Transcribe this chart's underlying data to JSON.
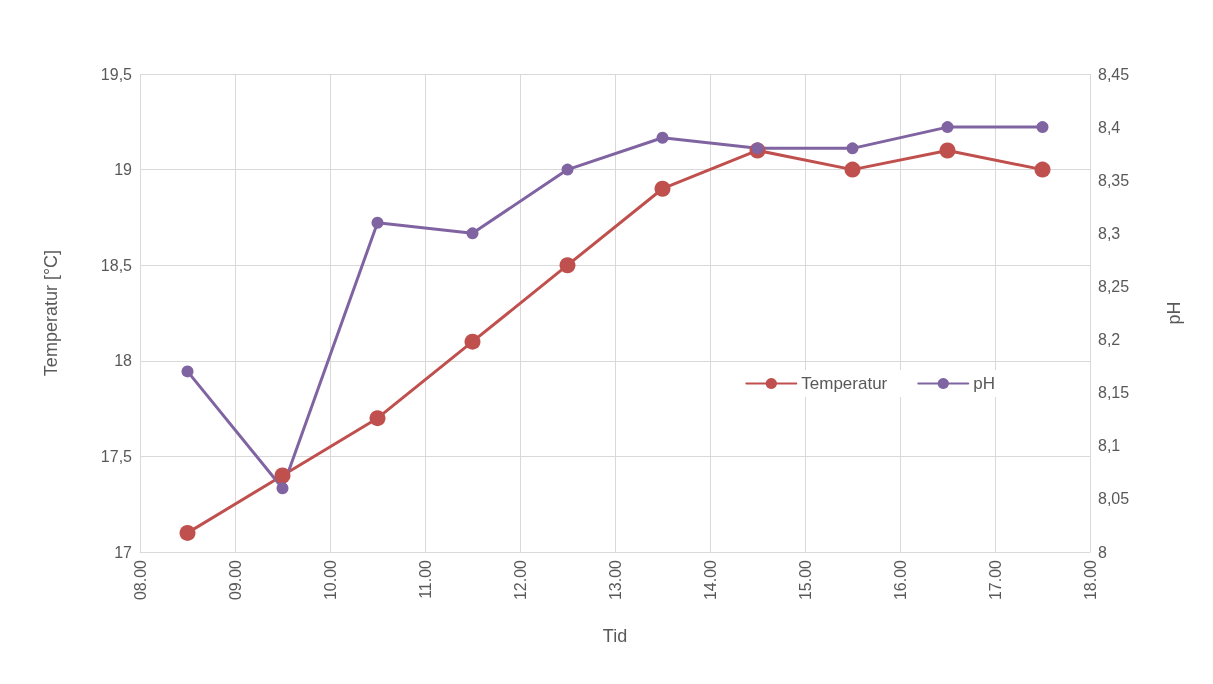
{
  "chart_data": {
    "type": "line",
    "xlabel": "Tid",
    "ylabel": "Temperatur [°C]",
    "y2label": "pH",
    "x": [
      8.5,
      9.5,
      10.5,
      11.5,
      12.5,
      13.5,
      14.5,
      15.5,
      16.5,
      17.5
    ],
    "series": [
      {
        "name": "Temperatur",
        "color": "#c0504d",
        "values": [
          17.1,
          17.4,
          17.7,
          18.1,
          18.5,
          18.9,
          19.1,
          19.0,
          19.1,
          19.0
        ]
      },
      {
        "name": "pH",
        "color": "#8064a2",
        "axis": "y2",
        "values": [
          8.17,
          8.06,
          8.31,
          8.3,
          8.36,
          8.39,
          8.38,
          8.38,
          8.4,
          8.4
        ]
      }
    ],
    "xlim": [
      8,
      18
    ],
    "xticks": [
      {
        "value": 8,
        "label": "08.00"
      },
      {
        "value": 9,
        "label": "09.00"
      },
      {
        "value": 10,
        "label": "10.00"
      },
      {
        "value": 11,
        "label": "11.00"
      },
      {
        "value": 12,
        "label": "12.00"
      },
      {
        "value": 13,
        "label": "13.00"
      },
      {
        "value": 14,
        "label": "14.00"
      },
      {
        "value": 15,
        "label": "15.00"
      },
      {
        "value": 16,
        "label": "16.00"
      },
      {
        "value": 17,
        "label": "17.00"
      },
      {
        "value": 18,
        "label": "18.00"
      }
    ],
    "ylim": [
      17,
      19.5
    ],
    "yticks": [
      17,
      {
        "value": 17.5,
        "label": "17,5"
      },
      18,
      {
        "value": 18.5,
        "label": "18,5"
      },
      19,
      {
        "value": 19.5,
        "label": "19,5"
      }
    ],
    "y2lim": [
      8,
      8.45
    ],
    "y2ticks": [
      8,
      {
        "value": 8.05,
        "label": "8,05"
      },
      {
        "value": 8.1,
        "label": "8,1"
      },
      {
        "value": 8.15,
        "label": "8,15"
      },
      {
        "value": 8.2,
        "label": "8,2"
      },
      {
        "value": 8.25,
        "label": "8,25"
      },
      {
        "value": 8.3,
        "label": "8,3"
      },
      {
        "value": 8.35,
        "label": "8,35"
      },
      {
        "value": 8.4,
        "label": "8,4"
      },
      {
        "value": 8.45,
        "label": "8,45"
      }
    ],
    "grid": true,
    "legend": "right",
    "marker": "circle",
    "line_style": "solid"
  }
}
